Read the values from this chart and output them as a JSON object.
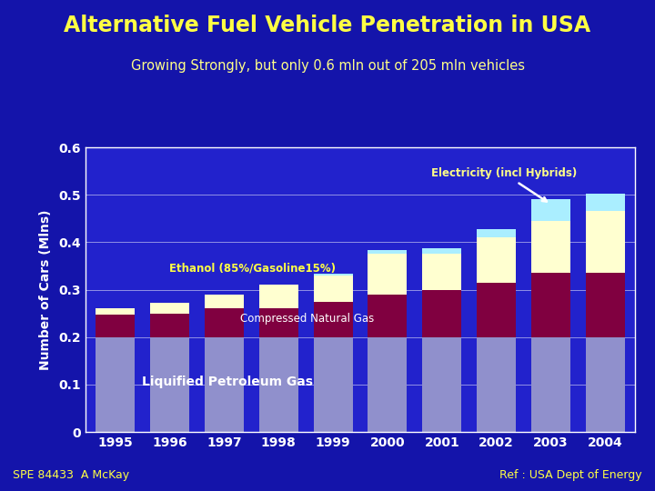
{
  "title": "Alternative Fuel Vehicle Penetration in USA",
  "subtitle": "Growing Strongly, but only 0.6 mln out of 205 mln vehicles",
  "ylabel": "Number of Cars (Mlns)",
  "years": [
    1995,
    1996,
    1997,
    1998,
    1999,
    2000,
    2001,
    2002,
    2003,
    2004
  ],
  "lpg": [
    0.2,
    0.2,
    0.2,
    0.2,
    0.2,
    0.2,
    0.2,
    0.2,
    0.2,
    0.2
  ],
  "cng": [
    0.048,
    0.05,
    0.06,
    0.06,
    0.075,
    0.09,
    0.1,
    0.115,
    0.135,
    0.135
  ],
  "ethanol": [
    0.012,
    0.022,
    0.03,
    0.05,
    0.055,
    0.085,
    0.075,
    0.095,
    0.11,
    0.13
  ],
  "electricity": [
    0.0,
    0.0,
    0.0,
    0.0,
    0.003,
    0.008,
    0.012,
    0.018,
    0.045,
    0.038
  ],
  "color_lpg": "#9090CC",
  "color_cng": "#800040",
  "color_ethanol": "#FFFFD0",
  "color_electricity": "#AAEEFF",
  "color_bg": "#1414AA",
  "color_plot_bg": "#2222CC",
  "color_title": "#FFFF44",
  "color_subtitle": "#FFFF88",
  "color_ylabel": "#FFFFFF",
  "color_tick_labels": "#FFFF44",
  "ylim": [
    0,
    0.6
  ],
  "yticks": [
    0,
    0.1,
    0.2,
    0.3,
    0.4,
    0.5,
    0.6
  ],
  "grid_color": "#FFFFFF",
  "bottom_left": "SPE 84433  A McKay",
  "bottom_right": "Ref : USA Dept of Energy",
  "ann_electricity": "Electricity (incl Hybrids)",
  "ann_ethanol": "Ethanol (85%/Gasoline15%)",
  "ann_cng": "Compressed Natural Gas",
  "ann_lpg": "Liquified Petroleum Gas"
}
